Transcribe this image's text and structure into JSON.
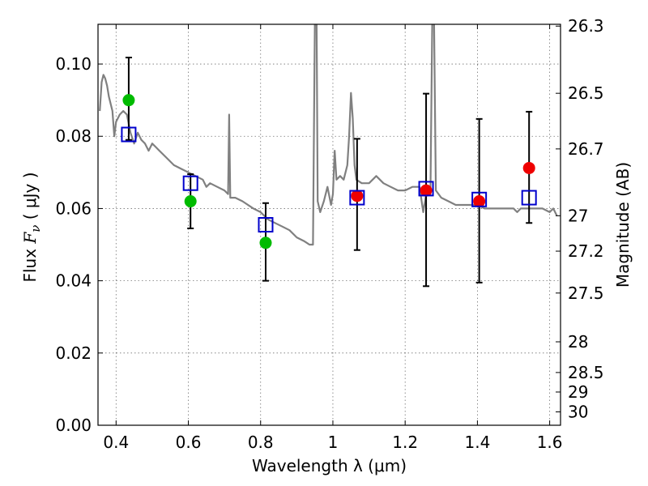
{
  "chart_data": {
    "type": "scatter",
    "xlabel": "Wavelength  λ (μm)",
    "ylabel_prefix": "Flux  ",
    "ylabel_symbol": "F",
    "ylabel_subscript": "ν",
    "ylabel_suffix": "  ( μJy )",
    "ylabel_right": "Magnitude (AB)",
    "xlim": [
      0.35,
      1.63
    ],
    "ylim": [
      0.0,
      0.111
    ],
    "grid": true,
    "x_ticks": [
      0.4,
      0.6,
      0.8,
      1.0,
      1.2,
      1.4,
      1.6
    ],
    "x_tick_labels": [
      "0.4",
      "0.6",
      "0.8",
      "1",
      "1.2",
      "1.4",
      "1.6"
    ],
    "y_ticks": [
      0.0,
      0.02,
      0.04,
      0.06,
      0.08,
      0.1
    ],
    "y_tick_labels": [
      "0.00",
      "0.02",
      "0.04",
      "0.06",
      "0.08",
      "0.10"
    ],
    "right_axis_ticks": [
      {
        "label": "26.3",
        "flux": 0.1105
      },
      {
        "label": "26.5",
        "flux": 0.0919
      },
      {
        "label": "26.7",
        "flux": 0.0765
      },
      {
        "label": "27",
        "flux": 0.058
      },
      {
        "label": "27.2",
        "flux": 0.0482
      },
      {
        "label": "27.5",
        "flux": 0.0366
      },
      {
        "label": "28",
        "flux": 0.0231
      },
      {
        "label": "28.5",
        "flux": 0.0146
      },
      {
        "label": "29",
        "flux": 0.0092
      },
      {
        "label": "30",
        "flux": 0.0037
      }
    ],
    "series": [
      {
        "kind": "model_spectrum",
        "color": "#808080",
        "points": [
          [
            0.355,
            0.087
          ],
          [
            0.36,
            0.095
          ],
          [
            0.365,
            0.097
          ],
          [
            0.37,
            0.096
          ],
          [
            0.375,
            0.094
          ],
          [
            0.38,
            0.091
          ],
          [
            0.385,
            0.089
          ],
          [
            0.39,
            0.087
          ],
          [
            0.395,
            0.08
          ],
          [
            0.4,
            0.084
          ],
          [
            0.41,
            0.086
          ],
          [
            0.42,
            0.087
          ],
          [
            0.43,
            0.086
          ],
          [
            0.44,
            0.081
          ],
          [
            0.45,
            0.078
          ],
          [
            0.46,
            0.081
          ],
          [
            0.47,
            0.079
          ],
          [
            0.48,
            0.078
          ],
          [
            0.49,
            0.076
          ],
          [
            0.5,
            0.078
          ],
          [
            0.51,
            0.077
          ],
          [
            0.52,
            0.076
          ],
          [
            0.54,
            0.074
          ],
          [
            0.56,
            0.072
          ],
          [
            0.58,
            0.071
          ],
          [
            0.6,
            0.07
          ],
          [
            0.62,
            0.069
          ],
          [
            0.64,
            0.068
          ],
          [
            0.65,
            0.066
          ],
          [
            0.66,
            0.067
          ],
          [
            0.68,
            0.066
          ],
          [
            0.7,
            0.065
          ],
          [
            0.71,
            0.064
          ],
          [
            0.713,
            0.086
          ],
          [
            0.716,
            0.063
          ],
          [
            0.73,
            0.063
          ],
          [
            0.75,
            0.062
          ],
          [
            0.78,
            0.06
          ],
          [
            0.8,
            0.059
          ],
          [
            0.82,
            0.057
          ],
          [
            0.84,
            0.056
          ],
          [
            0.86,
            0.055
          ],
          [
            0.88,
            0.054
          ],
          [
            0.9,
            0.052
          ],
          [
            0.92,
            0.051
          ],
          [
            0.935,
            0.05
          ],
          [
            0.945,
            0.05
          ],
          [
            0.95,
            0.111
          ],
          [
            0.955,
            0.111
          ],
          [
            0.958,
            0.062
          ],
          [
            0.965,
            0.059
          ],
          [
            0.975,
            0.062
          ],
          [
            0.985,
            0.066
          ],
          [
            0.995,
            0.061
          ],
          [
            1.0,
            0.064
          ],
          [
            1.005,
            0.076
          ],
          [
            1.01,
            0.068
          ],
          [
            1.02,
            0.069
          ],
          [
            1.03,
            0.068
          ],
          [
            1.04,
            0.072
          ],
          [
            1.045,
            0.08
          ],
          [
            1.05,
            0.092
          ],
          [
            1.055,
            0.085
          ],
          [
            1.06,
            0.072
          ],
          [
            1.065,
            0.068
          ],
          [
            1.08,
            0.067
          ],
          [
            1.1,
            0.067
          ],
          [
            1.11,
            0.068
          ],
          [
            1.12,
            0.069
          ],
          [
            1.14,
            0.067
          ],
          [
            1.16,
            0.066
          ],
          [
            1.18,
            0.065
          ],
          [
            1.2,
            0.065
          ],
          [
            1.22,
            0.066
          ],
          [
            1.24,
            0.066
          ],
          [
            1.25,
            0.059
          ],
          [
            1.26,
            0.065
          ],
          [
            1.27,
            0.064
          ],
          [
            1.275,
            0.111
          ],
          [
            1.28,
            0.111
          ],
          [
            1.285,
            0.065
          ],
          [
            1.3,
            0.063
          ],
          [
            1.32,
            0.062
          ],
          [
            1.34,
            0.061
          ],
          [
            1.36,
            0.061
          ],
          [
            1.38,
            0.061
          ],
          [
            1.4,
            0.061
          ],
          [
            1.42,
            0.06
          ],
          [
            1.44,
            0.06
          ],
          [
            1.46,
            0.06
          ],
          [
            1.48,
            0.06
          ],
          [
            1.5,
            0.06
          ],
          [
            1.51,
            0.059
          ],
          [
            1.52,
            0.06
          ],
          [
            1.54,
            0.06
          ],
          [
            1.56,
            0.06
          ],
          [
            1.58,
            0.06
          ],
          [
            1.6,
            0.059
          ],
          [
            1.61,
            0.06
          ],
          [
            1.62,
            0.058
          ]
        ]
      },
      {
        "kind": "photometry_green",
        "color": "#00bb00",
        "x": [
          0.435,
          0.606,
          0.814
        ],
        "y": [
          0.09,
          0.062,
          0.0505
        ]
      },
      {
        "kind": "photometry_red",
        "color": "#ee0000",
        "x": [
          1.067,
          1.258,
          1.405,
          1.543
        ],
        "y": [
          0.0635,
          0.065,
          0.062,
          0.0712
        ]
      },
      {
        "kind": "model_photometry",
        "color": "#0000cc",
        "x": [
          0.435,
          0.606,
          0.814,
          1.067,
          1.258,
          1.405,
          1.543
        ],
        "y": [
          0.0805,
          0.067,
          0.0555,
          0.063,
          0.0655,
          0.0625,
          0.063
        ]
      },
      {
        "kind": "error_bars",
        "color": "#000000",
        "x": [
          0.435,
          0.606,
          0.814,
          1.067,
          1.258,
          1.405,
          1.543
        ],
        "low": [
          0.079,
          0.0545,
          0.04,
          0.0485,
          0.0385,
          0.0395,
          0.056
        ],
        "high": [
          0.1018,
          0.0695,
          0.0615,
          0.0793,
          0.0918,
          0.0848,
          0.0868
        ]
      }
    ]
  }
}
